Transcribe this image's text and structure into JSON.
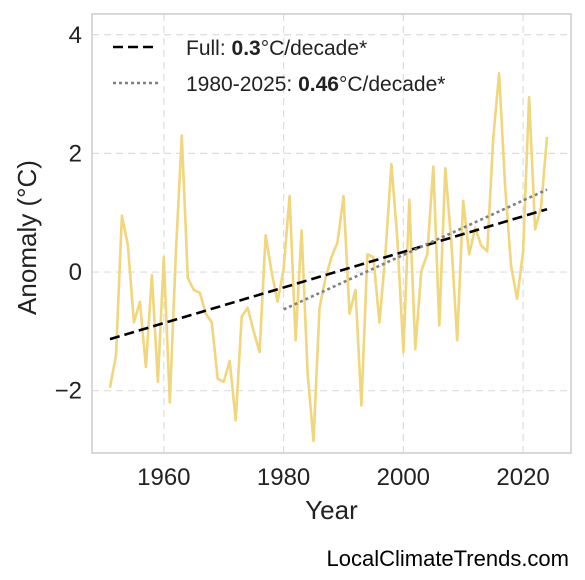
{
  "chart_data": {
    "type": "line",
    "xlabel": "Year",
    "ylabel": "Anomaly (°C)",
    "xlim": [
      1948,
      2028
    ],
    "ylim": [
      -3.05,
      4.35
    ],
    "x_ticks": [
      1960,
      1980,
      2000,
      2020
    ],
    "y_ticks": [
      -2,
      0,
      2,
      4
    ],
    "y_tick_labels": [
      "−2",
      "0",
      "2",
      "4"
    ],
    "grid": true,
    "legend_position": "top-left",
    "series": [
      {
        "style": "line",
        "color": "#f0d67c",
        "x": [
          1951,
          1952,
          1953,
          1954,
          1955,
          1956,
          1957,
          1958,
          1959,
          1960,
          1961,
          1962,
          1963,
          1964,
          1965,
          1966,
          1967,
          1968,
          1969,
          1970,
          1971,
          1972,
          1973,
          1974,
          1975,
          1976,
          1977,
          1978,
          1979,
          1980,
          1981,
          1982,
          1983,
          1984,
          1985,
          1986,
          1987,
          1988,
          1989,
          1990,
          1991,
          1992,
          1993,
          1994,
          1995,
          1996,
          1997,
          1998,
          1999,
          2000,
          2001,
          2002,
          2003,
          2004,
          2005,
          2006,
          2007,
          2008,
          2009,
          2010,
          2011,
          2012,
          2013,
          2014,
          2015,
          2016,
          2017,
          2018,
          2019,
          2020,
          2021,
          2022,
          2023,
          2024
        ],
        "y": [
          -1.95,
          -1.4,
          0.95,
          0.45,
          -0.85,
          -0.5,
          -1.6,
          -0.05,
          -1.85,
          0.25,
          -2.2,
          0.3,
          2.3,
          -0.1,
          -0.3,
          -0.35,
          -0.7,
          -0.85,
          -1.8,
          -1.85,
          -1.5,
          -2.5,
          -0.75,
          -0.6,
          -1.0,
          -1.35,
          0.62,
          0.0,
          -0.5,
          0.05,
          1.28,
          -1.15,
          0.7,
          -1.7,
          -2.85,
          -0.6,
          -0.1,
          0.25,
          0.5,
          1.28,
          -0.7,
          -0.3,
          -2.25,
          0.3,
          0.25,
          -0.85,
          0.3,
          1.82,
          0.55,
          -1.35,
          1.22,
          -1.3,
          0.02,
          0.3,
          1.78,
          -0.9,
          1.75,
          0.5,
          -1.15,
          1.2,
          0.3,
          0.75,
          0.45,
          0.35,
          2.25,
          3.35,
          1.45,
          0.1,
          -0.45,
          0.35,
          2.95,
          0.72,
          1.1,
          2.28
        ]
      },
      {
        "style": "dashed",
        "color": "#000000",
        "x": [
          1951,
          2024
        ],
        "y": [
          -1.13,
          1.06
        ]
      },
      {
        "style": "dotted",
        "color": "#808080",
        "x": [
          1980,
          2024
        ],
        "y": [
          -0.63,
          1.39
        ]
      }
    ],
    "legend": [
      {
        "prefix": "Full: ",
        "value": "0.3",
        "suffix": "°C/decade*",
        "style": "dashed",
        "color": "#000000"
      },
      {
        "prefix": "1980-2025: ",
        "value": "0.46",
        "suffix": "°C/decade*",
        "style": "dotted",
        "color": "#808080"
      }
    ]
  },
  "credit": "LocalClimateTrends.com"
}
